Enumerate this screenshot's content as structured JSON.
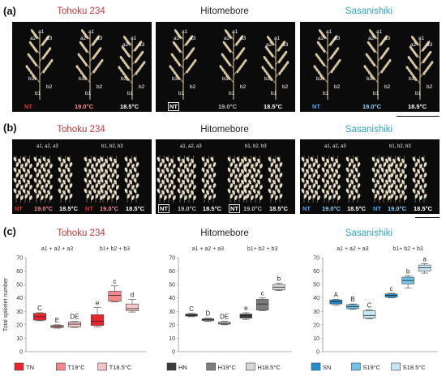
{
  "panels": {
    "a": "(a)",
    "b": "(b)",
    "c": "(c)"
  },
  "cultivars": [
    {
      "name": "Tohoku 234",
      "color": "#c8373b"
    },
    {
      "name": "Hitomebore",
      "color": "#222222"
    },
    {
      "name": "Sasanishiki",
      "color": "#2fa4c6"
    }
  ],
  "panel_a": {
    "groups": [
      {
        "labels": [
          "NT",
          "19.0°C",
          "18.5°C"
        ],
        "label_colors": [
          "#e0332f",
          "#ff8c8c",
          "#ffffff"
        ],
        "branch_marks": [
          "a2",
          "a1",
          "a3",
          "b3",
          "b2",
          "b1"
        ]
      },
      {
        "labels": [
          "NT",
          "19.0°C",
          "18.5°C"
        ],
        "label_colors": [
          "#ffffff",
          "#bdbdbd",
          "#ffffff"
        ],
        "branch_marks": [
          "a2",
          "a1",
          "a3",
          "b3",
          "b2",
          "b1"
        ]
      },
      {
        "labels": [
          "NT",
          "19.0°C",
          "18.5°C"
        ],
        "label_colors": [
          "#3fa9f5",
          "#8fd3ff",
          "#ffffff"
        ],
        "branch_marks": [
          "a2",
          "a1",
          "a3",
          "b3",
          "b2",
          "b1"
        ]
      }
    ]
  },
  "panel_b": {
    "header_primary": "a1, a2, a3",
    "header_secondary": "b1, b2, b3",
    "groups": [
      {
        "labels": [
          "NT",
          "19.0°C",
          "18.5°C",
          "NT",
          "19.0°C",
          "18.5°C"
        ],
        "label_colors": [
          "#e0332f",
          "#ff8c8c",
          "#ffffff",
          "#e0332f",
          "#ff8c8c",
          "#ffffff"
        ]
      },
      {
        "labels": [
          "NT",
          "19.0°C",
          "18.5°C",
          "NT",
          "19.0°C",
          "18.5°C"
        ],
        "label_colors": [
          "#ffffff",
          "#bdbdbd",
          "#ffffff",
          "#ffffff",
          "#bdbdbd",
          "#ffffff"
        ]
      },
      {
        "labels": [
          "NT",
          "19.0°C",
          "18.5°C",
          "NT",
          "19.0°C",
          "18.5°C"
        ],
        "label_colors": [
          "#3fa9f5",
          "#8fd3ff",
          "#ffffff",
          "#3fa9f5",
          "#8fd3ff",
          "#ffffff"
        ]
      }
    ]
  },
  "chart_data": [
    {
      "type": "box",
      "title": "Tohoku 234",
      "ylabel": "Total spikelet number",
      "ylim": [
        0,
        70
      ],
      "yticks": [
        0,
        10,
        20,
        30,
        40,
        50,
        60,
        70
      ],
      "group_labels": [
        "a1 + a2 + a3",
        "b1+ b2 + b3"
      ],
      "legend": [
        "TN",
        "T19°C",
        "T18.5°C"
      ],
      "colors": [
        "#e8262b",
        "#f4878a",
        "#f7c4c6"
      ],
      "boxes": [
        {
          "group": 0,
          "series": 0,
          "min": 23,
          "q1": 23.5,
          "median": 26,
          "q3": 28.5,
          "max": 29,
          "letter": "C"
        },
        {
          "group": 0,
          "series": 1,
          "min": 17.5,
          "q1": 18,
          "median": 18.8,
          "q3": 19.5,
          "max": 20,
          "letter": "E"
        },
        {
          "group": 0,
          "series": 2,
          "min": 18,
          "q1": 18.5,
          "median": 20.5,
          "q3": 22,
          "max": 22.5,
          "letter": "DE"
        },
        {
          "group": 1,
          "series": 0,
          "min": 18.5,
          "q1": 19.5,
          "median": 22.5,
          "q3": 27.5,
          "max": 33,
          "letter": "e"
        },
        {
          "group": 1,
          "series": 1,
          "min": 37,
          "q1": 37.5,
          "median": 42,
          "q3": 45,
          "max": 49,
          "letter": "c"
        },
        {
          "group": 1,
          "series": 2,
          "min": 29.5,
          "q1": 30.5,
          "median": 32,
          "q3": 35.5,
          "max": 39,
          "letter": "d"
        }
      ]
    },
    {
      "type": "box",
      "title": "Hitomebore",
      "ylim": [
        0,
        70
      ],
      "yticks": [
        0,
        10,
        20,
        30,
        40,
        50,
        60,
        70
      ],
      "group_labels": [
        "a1 + a2 + a3",
        "b1+ b2 + b3"
      ],
      "legend": [
        "HN",
        "H19°C",
        "H18.5°C"
      ],
      "colors": [
        "#3b3b3b",
        "#7d7d7d",
        "#d6d6d6"
      ],
      "boxes": [
        {
          "group": 0,
          "series": 0,
          "min": 26,
          "q1": 26.5,
          "median": 27,
          "q3": 28,
          "max": 28.5,
          "letter": "C"
        },
        {
          "group": 0,
          "series": 1,
          "min": 22.5,
          "q1": 23,
          "median": 23.8,
          "q3": 24.5,
          "max": 25,
          "letter": "D"
        },
        {
          "group": 0,
          "series": 2,
          "min": 20,
          "q1": 20.5,
          "median": 21,
          "q3": 22,
          "max": 22.5,
          "letter": "DE"
        },
        {
          "group": 1,
          "series": 0,
          "min": 24,
          "q1": 25,
          "median": 27,
          "q3": 28,
          "max": 29,
          "letter": "e"
        },
        {
          "group": 1,
          "series": 1,
          "min": 30.5,
          "q1": 31,
          "median": 35.5,
          "q3": 39,
          "max": 40,
          "letter": "c"
        },
        {
          "group": 1,
          "series": 2,
          "min": 45.5,
          "q1": 46,
          "median": 48,
          "q3": 50,
          "max": 51,
          "letter": "b"
        }
      ]
    },
    {
      "type": "box",
      "title": "Sasanishiki",
      "ylim": [
        0,
        70
      ],
      "yticks": [
        0,
        10,
        20,
        30,
        40,
        50,
        60,
        70
      ],
      "group_labels": [
        "a1 + a2 + a3",
        "b1+ b2 + b3"
      ],
      "legend": [
        "SN",
        "S19°C",
        "S18.5°C"
      ],
      "colors": [
        "#1f8fd0",
        "#6ec4ea",
        "#c5e8f7"
      ],
      "boxes": [
        {
          "group": 0,
          "series": 0,
          "min": 34.5,
          "q1": 35.5,
          "median": 37,
          "q3": 38.5,
          "max": 39,
          "letter": "A"
        },
        {
          "group": 0,
          "series": 1,
          "min": 31.5,
          "q1": 32,
          "median": 33.5,
          "q3": 35,
          "max": 35.5,
          "letter": "B"
        },
        {
          "group": 0,
          "series": 2,
          "min": 24.5,
          "q1": 25,
          "median": 27,
          "q3": 30.5,
          "max": 31,
          "letter": "C"
        },
        {
          "group": 1,
          "series": 0,
          "min": 40,
          "q1": 40.5,
          "median": 42,
          "q3": 43,
          "max": 43.5,
          "letter": "c"
        },
        {
          "group": 1,
          "series": 1,
          "min": 47.5,
          "q1": 50.5,
          "median": 53,
          "q3": 55.5,
          "max": 56.5,
          "letter": "b"
        },
        {
          "group": 1,
          "series": 2,
          "min": 58.5,
          "q1": 60,
          "median": 62.5,
          "q3": 64.5,
          "max": 65.5,
          "letter": "a"
        }
      ]
    }
  ]
}
